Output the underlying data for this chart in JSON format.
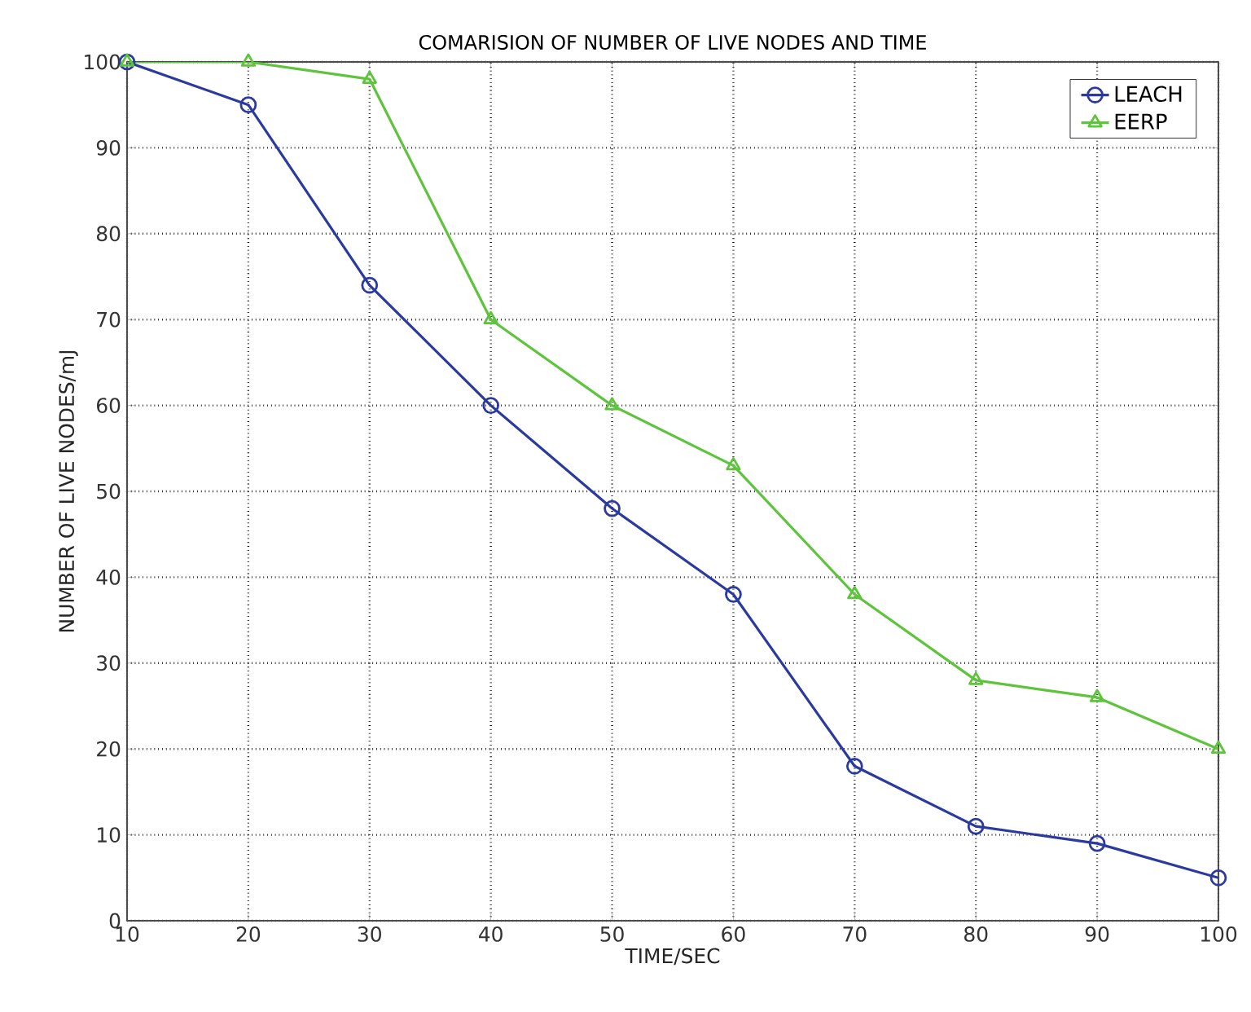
{
  "chart_data": {
    "type": "line",
    "title": "COMARISION OF NUMBER OF LIVE NODES AND TIME",
    "xlabel": "TIME/SEC",
    "ylabel": "NUMBER OF LIVE NODES/mJ",
    "x": [
      10,
      20,
      30,
      40,
      50,
      60,
      70,
      80,
      90,
      100
    ],
    "series": [
      {
        "name": "LEACH",
        "color": "#2b3a9e",
        "marker": "circle",
        "values": [
          100,
          95,
          74,
          60,
          48,
          38,
          18,
          11,
          9,
          5
        ]
      },
      {
        "name": "EERP",
        "color": "#5ec43c",
        "marker": "triangle",
        "values": [
          100,
          100,
          98,
          70,
          60,
          53,
          38,
          28,
          26,
          20
        ]
      }
    ],
    "xlim": [
      10,
      100
    ],
    "ylim": [
      0,
      100
    ],
    "xticks": [
      10,
      20,
      30,
      40,
      50,
      60,
      70,
      80,
      90,
      100
    ],
    "yticks": [
      0,
      10,
      20,
      30,
      40,
      50,
      60,
      70,
      80,
      90,
      100
    ],
    "grid": true,
    "legend": "top right",
    "line_style": "solid"
  }
}
